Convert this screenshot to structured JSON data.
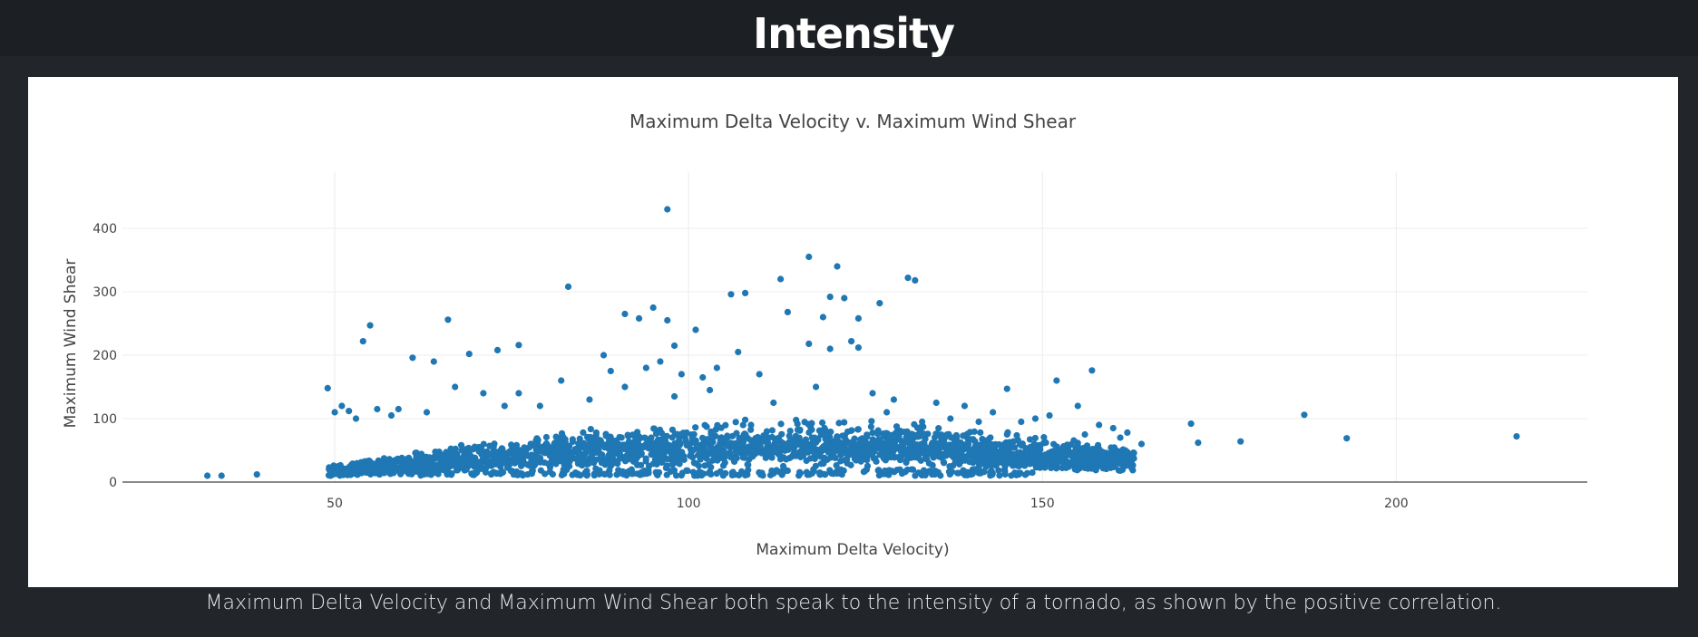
{
  "header": {
    "title": "Intensity"
  },
  "caption": "Maximum Delta Velocity and Maximum Wind Shear both speak to the intensity of a tornado, as shown by the positive correlation.",
  "chart_data": {
    "type": "scatter",
    "title": "Maximum Delta Velocity v. Maximum Wind Shear",
    "xlabel": "Maximum Delta Velocity)",
    "ylabel": "Maximum Wind Shear",
    "xlim": [
      20,
      227
    ],
    "ylim": [
      0,
      460
    ],
    "xticks": [
      50,
      100,
      150,
      200
    ],
    "yticks": [
      0,
      100,
      200,
      300,
      400
    ],
    "grid": true,
    "legend": "none",
    "marker_color": "#1f77b4",
    "series": [
      {
        "x": [
          32,
          34,
          39,
          97,
          83,
          117,
          121,
          113,
          131,
          132,
          106,
          108,
          120,
          122,
          114,
          127,
          66,
          55,
          54,
          95,
          97,
          101,
          91,
          93,
          119,
          124,
          120,
          117,
          123,
          124,
          98,
          107,
          73,
          76,
          88,
          61,
          64,
          69,
          157,
          152,
          145,
          49,
          171,
          172,
          178,
          187,
          193,
          217,
          142,
          153,
          98,
          91,
          79,
          71,
          59,
          86,
          112,
          128,
          103,
          155,
          156,
          161,
          164,
          141,
          137,
          133,
          110,
          89,
          82,
          76,
          74,
          67,
          63,
          58,
          56,
          52,
          50,
          51,
          53,
          94,
          96,
          99,
          102,
          104,
          118,
          126,
          129,
          135,
          139,
          143,
          147,
          149,
          151,
          158,
          160,
          162
        ],
        "y": [
          10,
          10,
          12,
          430,
          308,
          355,
          340,
          320,
          322,
          318,
          296,
          298,
          292,
          290,
          268,
          282,
          256,
          247,
          222,
          275,
          255,
          240,
          265,
          258,
          260,
          258,
          210,
          218,
          222,
          212,
          215,
          205,
          208,
          216,
          200,
          196,
          190,
          202,
          176,
          160,
          147,
          148,
          92,
          62,
          64,
          106,
          69,
          72,
          25,
          26,
          135,
          150,
          120,
          140,
          115,
          130,
          125,
          110,
          145,
          120,
          75,
          70,
          60,
          95,
          100,
          95,
          170,
          175,
          160,
          140,
          120,
          150,
          110,
          105,
          115,
          112,
          110,
          120,
          100,
          180,
          190,
          170,
          165,
          180,
          150,
          140,
          130,
          125,
          120,
          110,
          95,
          100,
          105,
          90,
          85,
          78
        ]
      }
    ],
    "dense_cloud": {
      "x_range": [
        49,
        163
      ],
      "y_typical_range": [
        8,
        100
      ],
      "description_points": 2200
    }
  }
}
